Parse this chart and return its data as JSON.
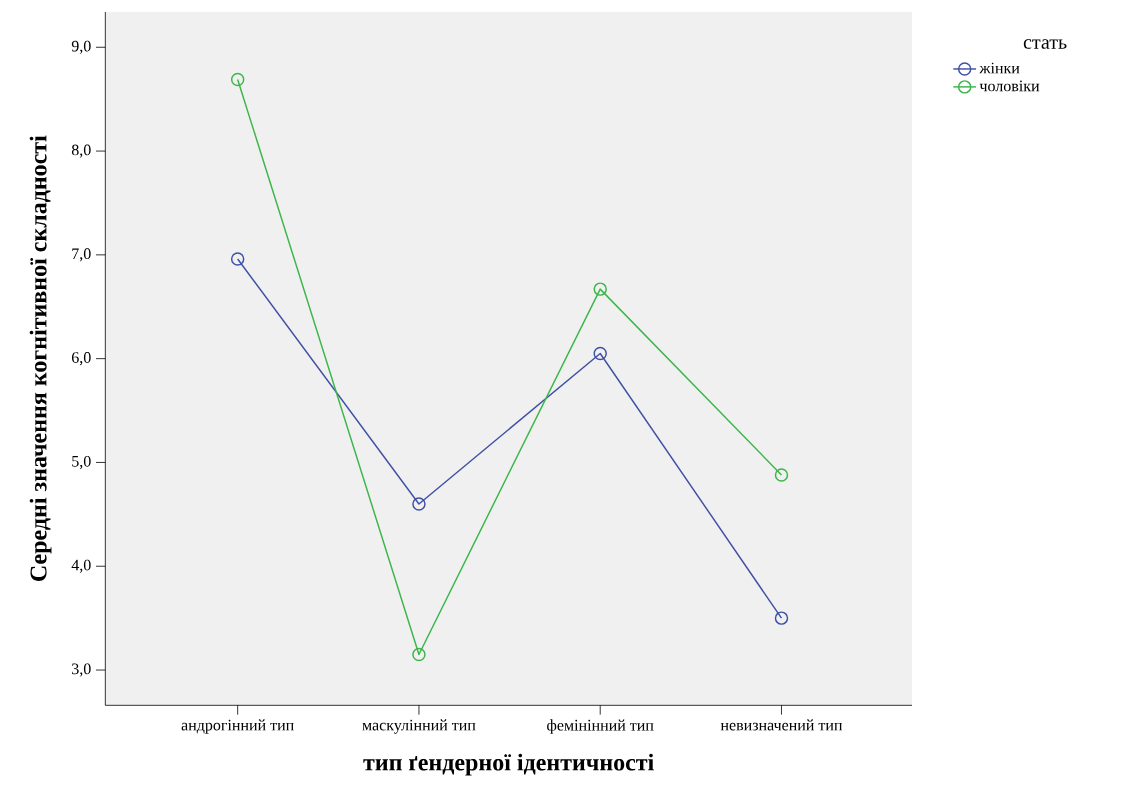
{
  "chart_data": {
    "type": "line",
    "xlabel": "тип ґендерної ідентичності",
    "ylabel": "Середні значення когнітивної складності",
    "legend_title": "стать",
    "categories": [
      "андрогінний тип",
      "маскулінний тип",
      "фемінінний тип",
      "невизначений тип"
    ],
    "series": [
      {
        "name": "жінки",
        "color": "#3f51a5",
        "values": [
          6.96,
          4.6,
          6.05,
          3.5
        ]
      },
      {
        "name": "чоловіки",
        "color": "#3cb64a",
        "values": [
          8.69,
          3.15,
          6.67,
          4.88
        ]
      }
    ],
    "ylim": [
      2.66,
      9.34
    ],
    "yticks": [
      {
        "value": 3,
        "label": "3,0"
      },
      {
        "value": 4,
        "label": "4,0"
      },
      {
        "value": 5,
        "label": "5,0"
      },
      {
        "value": 6,
        "label": "6,0"
      },
      {
        "value": 7,
        "label": "7,0"
      },
      {
        "value": 8,
        "label": "8,0"
      },
      {
        "value": 9,
        "label": "9,0"
      }
    ],
    "marker": "circle",
    "line_style": "solid",
    "grid": false,
    "legend": "top right"
  }
}
